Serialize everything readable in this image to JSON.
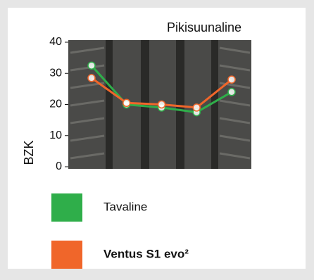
{
  "chart_data": {
    "type": "line",
    "title": "Pikisuunaline",
    "y_label": "BZK",
    "categories": [
      null,
      null,
      null,
      null,
      null
    ],
    "series": [
      {
        "name": "Tavaline",
        "color": "#2fae4a",
        "values": [
          32.5,
          20,
          19,
          17.5,
          24
        ]
      },
      {
        "name": "Ventus S1 evo²",
        "color": "#f0662a",
        "values": [
          28.5,
          20.5,
          20,
          19,
          28
        ]
      }
    ],
    "ylim": [
      0,
      40
    ],
    "yticks": [
      0,
      10,
      20,
      30,
      40
    ]
  }
}
